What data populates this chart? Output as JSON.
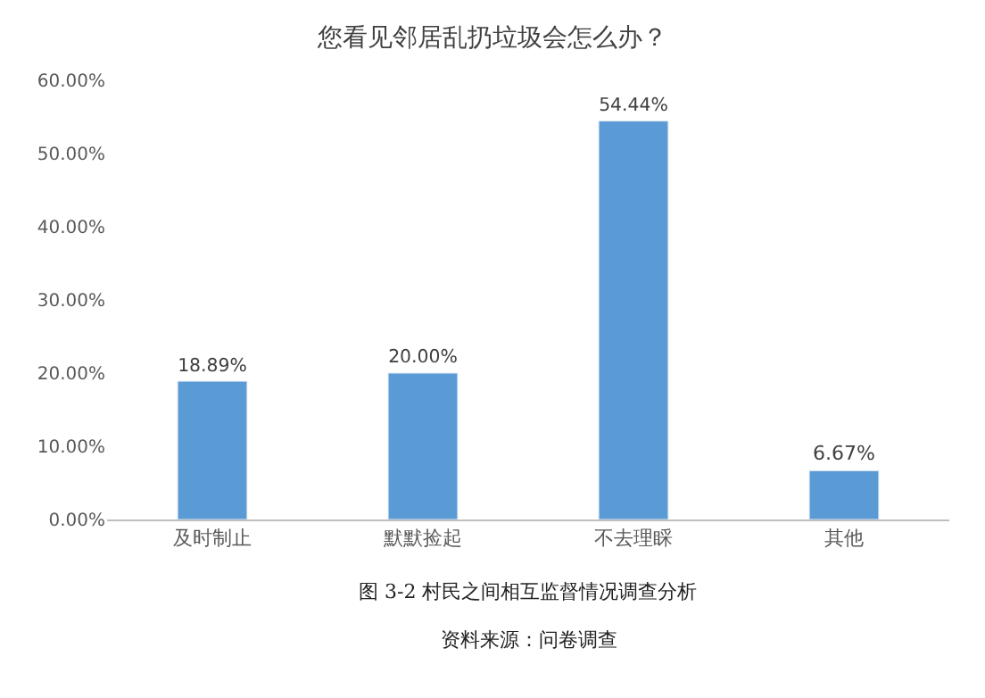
{
  "chart_data": {
    "type": "bar",
    "title": "您看见邻居乱扔垃圾会怎么办？",
    "categories": [
      "及时制止",
      "默默捡起",
      "不去理睬",
      "其他"
    ],
    "values": [
      18.89,
      20.0,
      54.44,
      6.67
    ],
    "value_labels": [
      "18.89%",
      "20.00%",
      "54.44%",
      "6.67%"
    ],
    "color": "#5b9bd5",
    "ylim": [
      0,
      60
    ],
    "yticks": [
      {
        "value": 0,
        "label": "0.00%"
      },
      {
        "value": 10,
        "label": "10.00%"
      },
      {
        "value": 20,
        "label": "20.00%"
      },
      {
        "value": 30,
        "label": "30.00%"
      },
      {
        "value": 40,
        "label": "40.00%"
      },
      {
        "value": 50,
        "label": "50.00%"
      },
      {
        "value": 60,
        "label": "60.00%"
      }
    ],
    "grid": false,
    "legend": false,
    "annotations": [
      "图 3-2 村民之间相互监督情况调查分析",
      "资料来源：问卷调查"
    ]
  }
}
